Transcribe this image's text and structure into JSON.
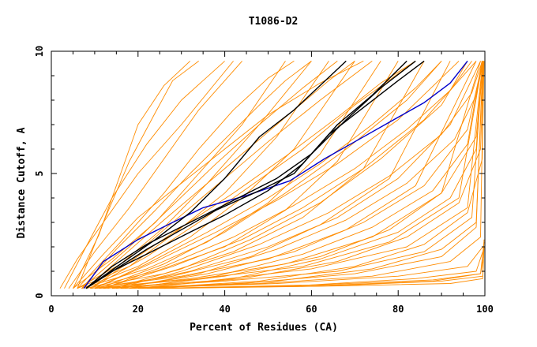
{
  "chart_data": {
    "type": "line",
    "title": "T1086-D2",
    "xlabel": "Percent of Residues (CA)",
    "ylabel": "Distance Cutoff, A",
    "xlim": [
      0,
      100
    ],
    "ylim": [
      0,
      10
    ],
    "x_ticks": [
      0,
      20,
      40,
      60,
      80,
      100
    ],
    "y_ticks": [
      0,
      5,
      10
    ],
    "grid": false,
    "colors": {
      "background_models": "#ff8c00",
      "highlight_blue": "#0000cc",
      "highlight_black": "#000000"
    },
    "highlight_series": [
      {
        "color": "blue",
        "x": [
          7.5,
          12,
          20,
          28,
          35,
          45,
          55,
          63,
          70,
          78,
          86,
          92,
          96
        ],
        "y": [
          0.3,
          1.4,
          2.3,
          3.0,
          3.6,
          4.1,
          4.7,
          5.6,
          6.3,
          7.1,
          7.9,
          8.7,
          9.6
        ]
      },
      {
        "color": "black",
        "x": [
          8,
          15,
          22,
          30,
          38,
          48,
          56,
          64,
          72,
          80,
          86
        ],
        "y": [
          0.3,
          1.1,
          1.9,
          2.7,
          3.5,
          4.3,
          5.0,
          6.6,
          7.7,
          8.8,
          9.6
        ]
      },
      {
        "color": "black",
        "x": [
          8,
          14,
          22,
          32,
          42,
          52,
          60,
          68,
          76,
          84
        ],
        "y": [
          0.3,
          1.2,
          2.1,
          3.0,
          3.9,
          4.8,
          5.8,
          7.2,
          8.5,
          9.6
        ]
      },
      {
        "color": "black",
        "x": [
          8,
          14,
          22,
          32,
          40,
          50,
          58,
          66,
          74,
          82
        ],
        "y": [
          0.3,
          1.0,
          1.7,
          2.6,
          3.3,
          4.3,
          5.4,
          7.0,
          8.2,
          9.6
        ]
      },
      {
        "color": "black",
        "x": [
          8,
          16,
          24,
          32,
          40,
          48,
          56,
          62,
          68
        ],
        "y": [
          0.3,
          1.3,
          2.3,
          3.4,
          4.8,
          6.5,
          7.6,
          8.6,
          9.6
        ]
      }
    ],
    "background_series": [
      {
        "x": [
          2,
          6,
          12,
          20,
          30,
          42
        ],
        "y": [
          0.3,
          1.5,
          3.0,
          5.0,
          7.0,
          9.6
        ]
      },
      {
        "x": [
          3,
          8,
          14,
          22,
          30,
          40
        ],
        "y": [
          0.3,
          2.0,
          4.0,
          6.2,
          8.0,
          9.6
        ]
      },
      {
        "x": [
          4,
          10,
          18,
          26,
          34,
          44
        ],
        "y": [
          0.3,
          1.8,
          3.6,
          5.6,
          7.6,
          9.6
        ]
      },
      {
        "x": [
          5,
          11,
          16,
          20,
          26,
          32
        ],
        "y": [
          0.3,
          2.5,
          5.0,
          7.0,
          8.6,
          9.6
        ]
      },
      {
        "x": [
          6,
          12,
          18,
          24,
          28,
          34
        ],
        "y": [
          0.3,
          3.0,
          5.5,
          7.5,
          8.8,
          9.6
        ]
      },
      {
        "x": [
          5,
          14,
          24,
          34,
          44,
          54
        ],
        "y": [
          0.3,
          1.5,
          3.0,
          5.0,
          7.0,
          9.6
        ]
      },
      {
        "x": [
          6,
          16,
          26,
          36,
          48,
          60
        ],
        "y": [
          0.3,
          1.3,
          2.8,
          4.6,
          7.0,
          9.6
        ]
      },
      {
        "x": [
          6,
          18,
          28,
          40,
          52,
          64
        ],
        "y": [
          0.3,
          1.2,
          2.5,
          4.2,
          6.5,
          9.6
        ]
      },
      {
        "x": [
          7,
          20,
          32,
          44,
          56,
          70
        ],
        "y": [
          0.3,
          1.2,
          2.4,
          4.0,
          6.0,
          9.6
        ]
      },
      {
        "x": [
          7,
          22,
          36,
          50,
          62,
          76
        ],
        "y": [
          0.3,
          1.1,
          2.2,
          3.8,
          5.8,
          9.6
        ]
      },
      {
        "x": [
          8,
          24,
          40,
          54,
          66,
          80
        ],
        "y": [
          0.3,
          1.0,
          2.0,
          3.5,
          5.5,
          9.6
        ]
      },
      {
        "x": [
          8,
          26,
          42,
          58,
          72,
          86
        ],
        "y": [
          0.3,
          0.9,
          1.8,
          3.2,
          5.2,
          9.6
        ]
      },
      {
        "x": [
          9,
          28,
          46,
          62,
          78,
          92
        ],
        "y": [
          0.3,
          0.8,
          1.6,
          2.9,
          4.8,
          9.6
        ]
      },
      {
        "x": [
          9,
          30,
          50,
          68,
          84,
          98
        ],
        "y": [
          0.3,
          0.8,
          1.5,
          2.7,
          4.5,
          9.6
        ]
      },
      {
        "x": [
          10,
          32,
          54,
          74,
          90,
          99
        ],
        "y": [
          0.3,
          0.7,
          1.3,
          2.4,
          4.2,
          9.6
        ]
      },
      {
        "x": [
          10,
          34,
          58,
          78,
          94,
          99.5
        ],
        "y": [
          0.3,
          0.7,
          1.2,
          2.2,
          4.0,
          9.6
        ]
      },
      {
        "x": [
          11,
          36,
          60,
          82,
          96,
          99.5
        ],
        "y": [
          0.3,
          0.6,
          1.1,
          2.0,
          3.6,
          9.6
        ]
      },
      {
        "x": [
          12,
          40,
          66,
          86,
          97,
          99.5
        ],
        "y": [
          0.3,
          0.6,
          1.0,
          1.8,
          3.2,
          9.6
        ]
      },
      {
        "x": [
          14,
          44,
          70,
          90,
          98,
          99.5
        ],
        "y": [
          0.3,
          0.5,
          0.9,
          1.6,
          2.8,
          9.6
        ]
      },
      {
        "x": [
          16,
          48,
          74,
          92,
          99,
          99.7
        ],
        "y": [
          0.3,
          0.5,
          0.8,
          1.4,
          2.4,
          9.6
        ]
      },
      {
        "x": [
          18,
          52,
          80,
          96,
          99.5
        ],
        "y": [
          0.3,
          0.5,
          0.8,
          1.2,
          2.0
        ]
      },
      {
        "x": [
          20,
          56,
          84,
          98,
          99.5
        ],
        "y": [
          0.3,
          0.4,
          0.7,
          1.0,
          1.8
        ]
      },
      {
        "x": [
          22,
          60,
          88,
          99,
          99.7
        ],
        "y": [
          0.3,
          0.4,
          0.6,
          0.9,
          1.6
        ]
      },
      {
        "x": [
          25,
          64,
          90,
          99.5,
          99.8
        ],
        "y": [
          0.3,
          0.4,
          0.6,
          0.8,
          2.3
        ]
      },
      {
        "x": [
          26,
          66,
          92,
          99.5,
          99.8
        ],
        "y": [
          0.3,
          0.4,
          0.5,
          0.7,
          2.0
        ]
      },
      {
        "x": [
          24,
          62,
          88,
          99,
          99.8
        ],
        "y": [
          0.3,
          0.45,
          0.65,
          0.9,
          2.2
        ]
      },
      {
        "x": [
          10,
          24,
          38,
          52,
          66,
          80,
          94
        ],
        "y": [
          0.3,
          1.4,
          2.6,
          3.9,
          5.4,
          7.2,
          9.6
        ]
      },
      {
        "x": [
          12,
          28,
          44,
          58,
          72,
          86,
          98
        ],
        "y": [
          0.3,
          1.2,
          2.3,
          3.6,
          5.2,
          7.2,
          9.6
        ]
      },
      {
        "x": [
          9,
          22,
          34,
          46,
          58,
          70,
          84
        ],
        "y": [
          0.3,
          1.6,
          3.0,
          4.5,
          6.0,
          7.8,
          9.6
        ]
      },
      {
        "x": [
          8,
          20,
          30,
          40,
          50,
          62,
          74
        ],
        "y": [
          0.3,
          1.8,
          3.3,
          4.8,
          6.3,
          8.0,
          9.6
        ]
      },
      {
        "x": [
          7,
          18,
          28,
          38,
          48,
          58,
          66
        ],
        "y": [
          0.3,
          2.0,
          3.7,
          5.4,
          7.0,
          8.5,
          9.6
        ]
      },
      {
        "x": [
          6,
          16,
          26,
          34,
          42,
          50,
          56
        ],
        "y": [
          0.3,
          2.2,
          4.2,
          6.0,
          7.6,
          8.9,
          9.6
        ]
      },
      {
        "x": [
          13,
          32,
          50,
          66,
          80,
          92,
          99
        ],
        "y": [
          0.3,
          1.0,
          2.0,
          3.2,
          4.8,
          7.0,
          9.6
        ]
      },
      {
        "x": [
          15,
          36,
          56,
          72,
          86,
          96,
          99.5
        ],
        "y": [
          0.3,
          0.9,
          1.8,
          3.0,
          4.5,
          6.8,
          9.6
        ]
      },
      {
        "x": [
          17,
          40,
          62,
          78,
          90,
          98,
          99.6
        ],
        "y": [
          0.3,
          0.8,
          1.6,
          2.7,
          4.2,
          6.5,
          9.6
        ]
      },
      {
        "x": [
          11,
          26,
          40,
          54,
          68,
          82,
          90
        ],
        "y": [
          0.3,
          1.3,
          2.6,
          4.2,
          6.0,
          8.0,
          9.6
        ]
      },
      {
        "x": [
          14,
          30,
          46,
          62,
          76,
          90,
          96
        ],
        "y": [
          0.3,
          1.1,
          2.3,
          3.8,
          5.6,
          7.8,
          9.6
        ]
      },
      {
        "x": [
          19,
          44,
          66,
          82,
          94,
          99,
          99.7
        ],
        "y": [
          0.3,
          0.7,
          1.4,
          2.4,
          3.8,
          6.0,
          9.6
        ]
      },
      {
        "x": [
          21,
          48,
          70,
          86,
          96,
          99.4,
          99.8
        ],
        "y": [
          0.3,
          0.6,
          1.2,
          2.1,
          3.4,
          5.6,
          9.6
        ]
      },
      {
        "x": [
          23,
          52,
          74,
          90,
          98,
          99.6
        ],
        "y": [
          0.3,
          0.6,
          1.1,
          1.9,
          3.0,
          9.6
        ]
      },
      {
        "x": [
          7,
          15,
          24,
          32,
          40,
          48,
          54,
          60
        ],
        "y": [
          0.3,
          1.9,
          3.5,
          5.0,
          6.4,
          7.8,
          8.8,
          9.6
        ]
      },
      {
        "x": [
          9,
          19,
          30,
          42,
          54,
          66,
          76,
          84
        ],
        "y": [
          0.3,
          1.5,
          2.8,
          4.2,
          5.7,
          7.3,
          8.7,
          9.6
        ]
      },
      {
        "x": [
          16,
          34,
          52,
          68,
          82,
          93,
          98,
          99.6
        ],
        "y": [
          0.3,
          0.9,
          1.9,
          3.1,
          4.6,
          6.4,
          8.2,
          9.6
        ]
      },
      {
        "x": [
          18,
          38,
          58,
          74,
          88,
          96,
          99.3
        ],
        "y": [
          0.3,
          0.8,
          1.7,
          2.8,
          4.3,
          6.2,
          9.6
        ]
      },
      {
        "x": [
          20,
          42,
          62,
          80,
          92,
          98,
          99.5
        ],
        "y": [
          0.3,
          0.7,
          1.5,
          2.6,
          4.0,
          6.0,
          9.6
        ]
      },
      {
        "x": [
          5,
          12,
          20,
          30,
          40,
          50,
          62,
          72
        ],
        "y": [
          0.3,
          1.7,
          3.2,
          4.6,
          6.0,
          7.4,
          8.7,
          9.6
        ]
      },
      {
        "x": [
          12,
          26,
          42,
          56,
          70,
          82,
          92,
          97
        ],
        "y": [
          0.3,
          1.2,
          2.4,
          3.7,
          5.2,
          6.8,
          8.4,
          9.6
        ]
      },
      {
        "x": [
          15,
          30,
          48,
          64,
          78,
          90,
          97,
          99.4
        ],
        "y": [
          0.3,
          1.0,
          2.1,
          3.4,
          4.9,
          6.6,
          8.3,
          9.6
        ]
      },
      {
        "x": [
          8,
          17,
          26,
          36,
          46,
          56,
          64,
          70
        ],
        "y": [
          0.3,
          1.7,
          3.1,
          4.6,
          6.1,
          7.6,
          8.8,
          9.6
        ]
      },
      {
        "x": [
          10,
          22,
          36,
          50,
          62,
          74,
          84,
          90
        ],
        "y": [
          0.3,
          1.3,
          2.6,
          4.0,
          5.4,
          7.0,
          8.5,
          9.6
        ]
      }
    ]
  }
}
